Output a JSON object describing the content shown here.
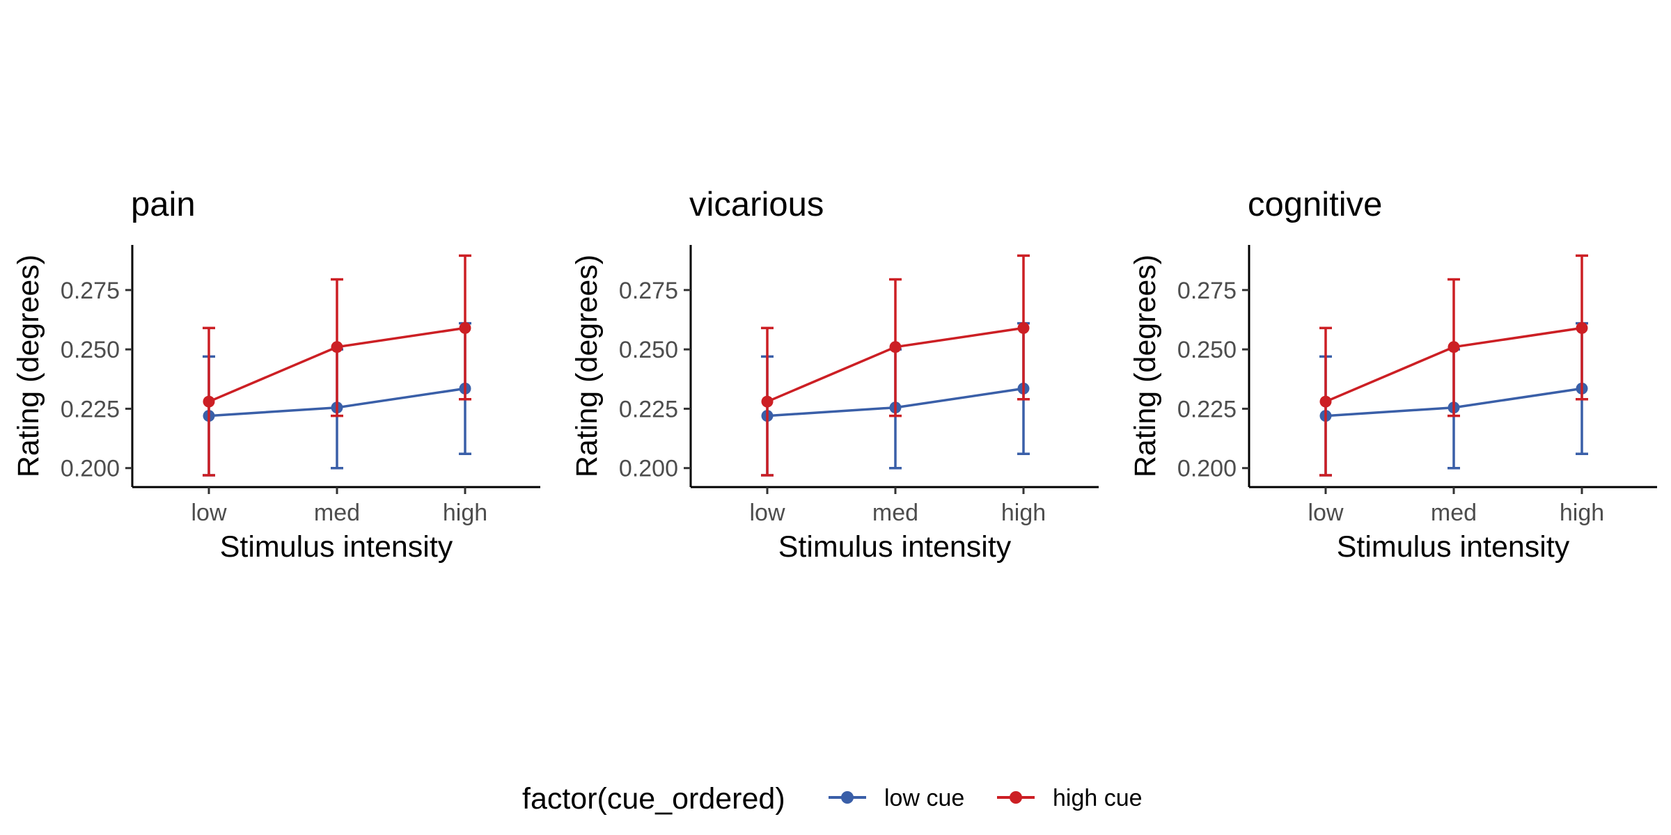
{
  "legend": {
    "title": "factor(cue_ordered)",
    "position": "bottom",
    "items": [
      {
        "label": "low cue",
        "color": "#3A5FA8"
      },
      {
        "label": "high cue",
        "color": "#CC1F24"
      }
    ]
  },
  "chart_data": [
    {
      "type": "line",
      "title": "pain",
      "xlabel": "Stimulus intensity",
      "ylabel": "Rating (degrees)",
      "categories": [
        "low",
        "med",
        "high"
      ],
      "yticks": [
        "0.200",
        "0.225",
        "0.250",
        "0.275"
      ],
      "ylim": [
        0.192,
        0.294
      ],
      "grid": false,
      "series": [
        {
          "name": "low cue",
          "color": "#3A5FA8",
          "values": [
            0.222,
            0.2255,
            0.2335
          ],
          "err_low": [
            0.197,
            0.2,
            0.206
          ],
          "err_high": [
            0.247,
            0.25,
            0.261
          ]
        },
        {
          "name": "high cue",
          "color": "#CC1F24",
          "values": [
            0.228,
            0.251,
            0.259
          ],
          "err_low": [
            0.197,
            0.222,
            0.229
          ],
          "err_high": [
            0.259,
            0.2795,
            0.2895
          ]
        }
      ]
    },
    {
      "type": "line",
      "title": "vicarious",
      "xlabel": "Stimulus intensity",
      "ylabel": "Rating (degrees)",
      "categories": [
        "low",
        "med",
        "high"
      ],
      "yticks": [
        "0.200",
        "0.225",
        "0.250",
        "0.275"
      ],
      "ylim": [
        0.192,
        0.294
      ],
      "grid": false,
      "series": [
        {
          "name": "low cue",
          "color": "#3A5FA8",
          "values": [
            0.222,
            0.2255,
            0.2335
          ],
          "err_low": [
            0.197,
            0.2,
            0.206
          ],
          "err_high": [
            0.247,
            0.25,
            0.261
          ]
        },
        {
          "name": "high cue",
          "color": "#CC1F24",
          "values": [
            0.228,
            0.251,
            0.259
          ],
          "err_low": [
            0.197,
            0.222,
            0.229
          ],
          "err_high": [
            0.259,
            0.2795,
            0.2895
          ]
        }
      ]
    },
    {
      "type": "line",
      "title": "cognitive",
      "xlabel": "Stimulus intensity",
      "ylabel": "Rating (degrees)",
      "categories": [
        "low",
        "med",
        "high"
      ],
      "yticks": [
        "0.200",
        "0.225",
        "0.250",
        "0.275"
      ],
      "ylim": [
        0.192,
        0.294
      ],
      "grid": false,
      "series": [
        {
          "name": "low cue",
          "color": "#3A5FA8",
          "values": [
            0.222,
            0.2255,
            0.2335
          ],
          "err_low": [
            0.197,
            0.2,
            0.206
          ],
          "err_high": [
            0.247,
            0.25,
            0.261
          ]
        },
        {
          "name": "high cue",
          "color": "#CC1F24",
          "values": [
            0.228,
            0.251,
            0.259
          ],
          "err_low": [
            0.197,
            0.222,
            0.229
          ],
          "err_high": [
            0.259,
            0.2795,
            0.2895
          ]
        }
      ]
    }
  ]
}
